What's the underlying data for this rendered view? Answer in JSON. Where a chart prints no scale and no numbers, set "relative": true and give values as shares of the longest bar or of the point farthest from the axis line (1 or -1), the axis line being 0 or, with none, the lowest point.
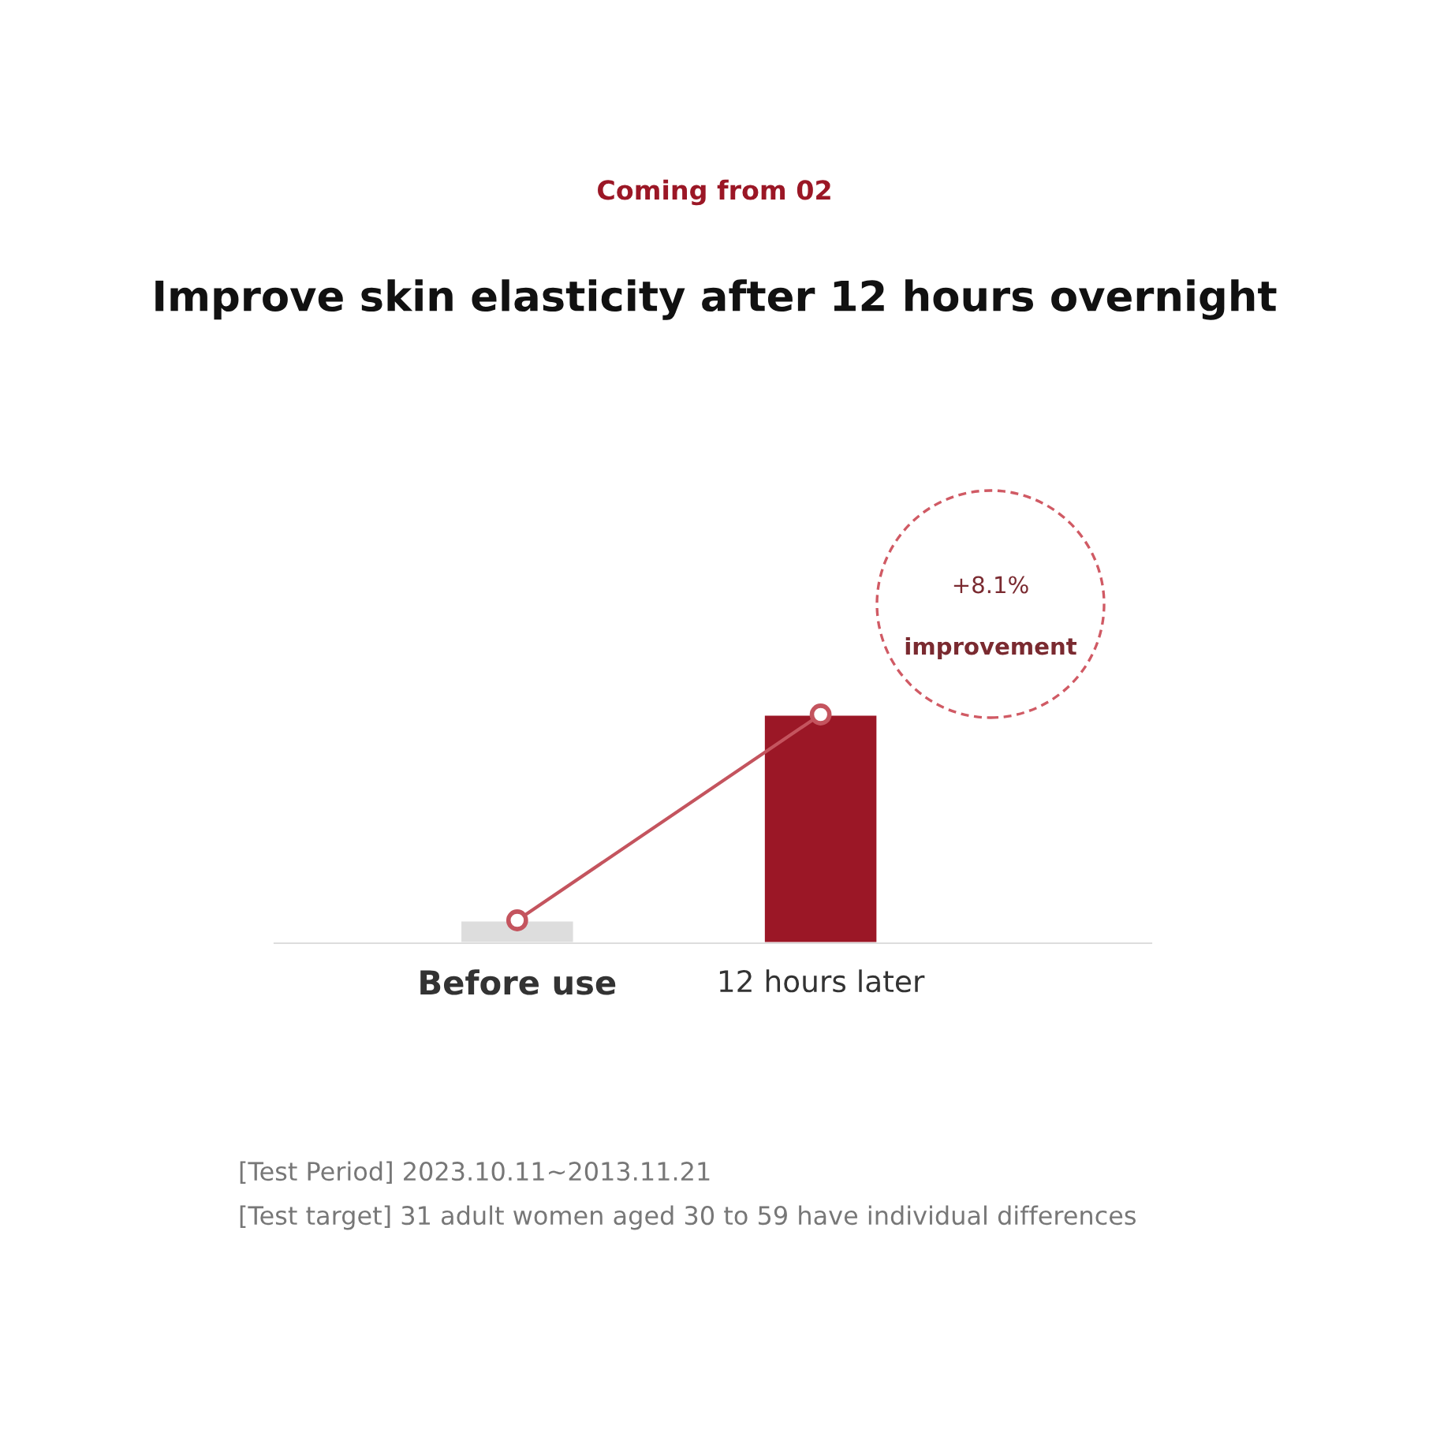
{
  "chart_data": {
    "type": "bar",
    "subtitle": "Coming from 02",
    "title": "Improve skin elasticity after 12 hours overnight",
    "categories": [
      "Before use",
      "12 hours later"
    ],
    "relative": true,
    "series": [
      {
        "values": [
          0.1,
          1
        ],
        "colors": [
          "#dddddd",
          "#9b1726"
        ]
      },
      {
        "type": "line",
        "values": [
          0.1,
          1
        ],
        "color": "#c4545e",
        "marker": "circle"
      }
    ],
    "annotations": [
      "+8.1%",
      "improvement",
      "[Test Period] 2023.10.11~2013.11.21",
      "[Test target] 31 adult women aged 30 to 59 have individual differences"
    ],
    "grid": false,
    "legend": false
  }
}
